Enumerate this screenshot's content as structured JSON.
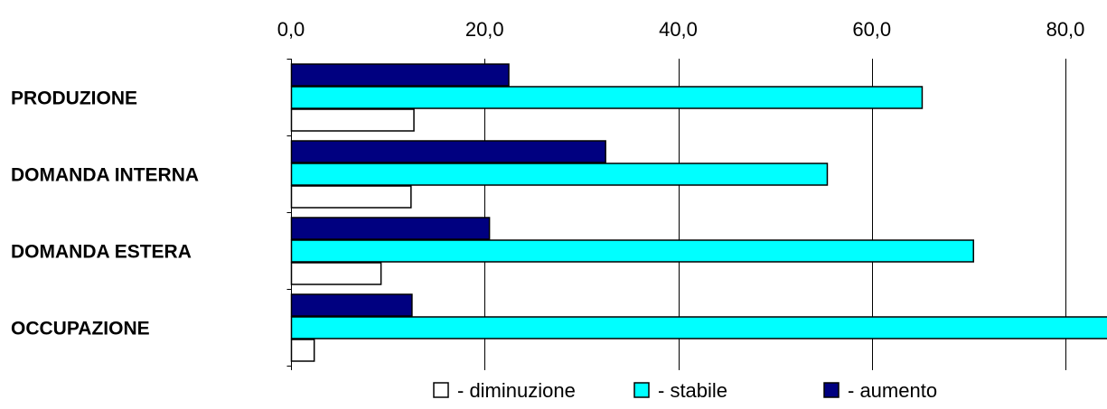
{
  "chart_data": {
    "type": "bar",
    "orientation": "horizontal",
    "categories": [
      "PRODUZIONE",
      "DOMANDA INTERNA",
      "DOMANDA ESTERA",
      "OCCUPAZIONE"
    ],
    "series": [
      {
        "name": "- aumento",
        "color": "#000080",
        "values": [
          22.5,
          32.5,
          20.5,
          12.5
        ]
      },
      {
        "name": "- stabile",
        "color": "#00ffff",
        "values": [
          65.2,
          55.4,
          70.5,
          85.0
        ]
      },
      {
        "name": "- diminuzione",
        "color": "#ffffff",
        "values": [
          12.7,
          12.4,
          9.3,
          2.4
        ]
      }
    ],
    "x_ticks": [
      "0,0",
      "20,0",
      "40,0",
      "60,0",
      "80,0"
    ],
    "x_tick_values": [
      0,
      20,
      40,
      60,
      80
    ],
    "xlim": [
      0,
      84
    ],
    "x_axis_position": "top",
    "grid": "vertical",
    "legend": {
      "placement": "bottom",
      "order": [
        "- diminuzione",
        "- stabile",
        "- aumento"
      ]
    }
  }
}
